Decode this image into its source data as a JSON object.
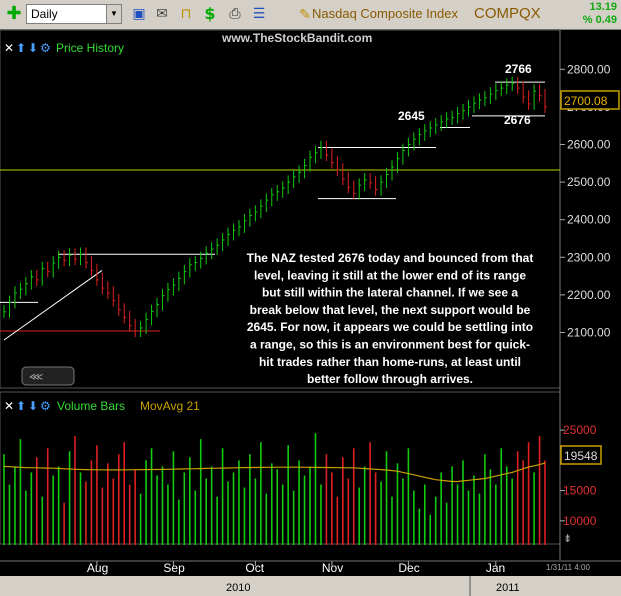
{
  "toolbar": {
    "period": "Daily",
    "symbol_name": "Nasdaq Composite Index",
    "symbol": "COMPQX",
    "change_abs": "13.19",
    "change_pct": "% 0.49"
  },
  "watermark": "www.TheStockBandit.com",
  "price_panel": {
    "title": "Price History",
    "last_price": "2700.08",
    "levels": [
      {
        "label": "2766",
        "value": 2766
      },
      {
        "label": "2645",
        "value": 2645
      },
      {
        "label": "2676",
        "value": 2676
      }
    ],
    "annotation": [
      "The NAZ tested 2676 today and bounced from that",
      "level, leaving it still at the lower end of its range",
      "but still within the lateral channel.  If we see a",
      "break below that level, the next support would be",
      "2645.  For now, it appears we could be settling into",
      "a range, so this is an environment best for quick-",
      "hit trades rather than home-runs, at least until",
      "better follow through arrives."
    ]
  },
  "volume_panel": {
    "title": "Volume Bars",
    "ma_title": "MovAvg 21",
    "last_ma": "19548"
  },
  "x_axis": {
    "months": [
      "Aug",
      "Sep",
      "Oct",
      "Nov",
      "Dec",
      "Jan"
    ],
    "years": [
      "2010",
      "2011"
    ],
    "end_date": "1/31/11 4:00"
  },
  "colors": {
    "up": "#11cc11",
    "down": "#e02020",
    "ma": "#c8a000",
    "text_green": "#33dd33",
    "price_tick": "#dddddd",
    "vol_tick": "#e03030"
  },
  "chart_data": [
    {
      "type": "ohlc",
      "title": "Price History",
      "y_ticks": [
        2100,
        2200,
        2300,
        2400,
        2500,
        2600,
        2700,
        2800
      ],
      "ylim": [
        2055,
        2850
      ],
      "last": 2700.08,
      "closes": [
        2155,
        2180,
        2205,
        2215,
        2230,
        2248,
        2240,
        2270,
        2262,
        2285,
        2300,
        2292,
        2306,
        2295,
        2308,
        2286,
        2265,
        2240,
        2218,
        2205,
        2185,
        2160,
        2140,
        2118,
        2104,
        2112,
        2135,
        2156,
        2174,
        2198,
        2214,
        2226,
        2244,
        2262,
        2280,
        2286,
        2297,
        2311,
        2322,
        2332,
        2346,
        2361,
        2372,
        2381,
        2397,
        2411,
        2420,
        2436,
        2452,
        2466,
        2474,
        2484,
        2500,
        2514,
        2526,
        2544,
        2566,
        2578,
        2592,
        2572,
        2552,
        2532,
        2508,
        2486,
        2470,
        2492,
        2506,
        2498,
        2480,
        2500,
        2520,
        2540,
        2562,
        2584,
        2600,
        2614,
        2626,
        2636,
        2644,
        2652,
        2660,
        2668,
        2672,
        2682,
        2690,
        2700,
        2710,
        2718,
        2724,
        2734,
        2744,
        2750,
        2758,
        2762,
        2750,
        2726,
        2708,
        2742,
        2730,
        2700
      ]
    },
    {
      "type": "bar",
      "title": "Volume Bars",
      "y_ticks": [
        10000,
        15000,
        20000,
        25000
      ],
      "ylim": [
        6000,
        27000
      ],
      "ma_last": 19548,
      "volumes": [
        21000,
        16000,
        19000,
        23500,
        15000,
        18000,
        20500,
        14000,
        22000,
        17500,
        19000,
        13000,
        21500,
        24000,
        18000,
        16500,
        20000,
        22500,
        15500,
        19500,
        17000,
        21000,
        23000,
        16000,
        18500,
        14500,
        20000,
        22000,
        17500,
        19000,
        16000,
        21500,
        13500,
        18000,
        20500,
        15000,
        23500,
        17000,
        19000,
        14000,
        22000,
        16500,
        18000,
        20000,
        15500,
        21000,
        17000,
        23000,
        14500,
        19500,
        18500,
        16000,
        22500,
        15000,
        20000,
        17500,
        19000,
        24500,
        16000,
        21000,
        18000,
        14000,
        20500,
        17000,
        22000,
        15500,
        19000,
        23000,
        18000,
        16500,
        21500,
        14000,
        19500,
        17000,
        22000,
        15000,
        12000,
        16000,
        11000,
        14000,
        18000,
        13000,
        19000,
        16000,
        20000,
        15000,
        17500,
        14500,
        21000,
        18500,
        16000,
        22000,
        19000,
        17000,
        21500,
        20000,
        23000,
        18000,
        24000,
        20000
      ],
      "ma": [
        19000,
        18950,
        18900,
        18850,
        18800,
        18780,
        18760,
        18740,
        18720,
        18700,
        18650,
        18600,
        18560,
        18520,
        18480,
        18460,
        18450,
        18440,
        18430,
        18420,
        18420,
        18420,
        18430,
        18440,
        18450,
        18460,
        18470,
        18480,
        18490,
        18500,
        18520,
        18540,
        18560,
        18580,
        18600,
        18620,
        18640,
        18660,
        18680,
        18700,
        18720,
        18740,
        18760,
        18780,
        18800,
        18810,
        18820,
        18830,
        18840,
        18850,
        18860,
        18860,
        18860,
        18860,
        18860,
        18850,
        18840,
        18830,
        18820,
        18810,
        18800,
        18790,
        18780,
        18770,
        18760,
        18700,
        18640,
        18580,
        18520,
        18460,
        18400,
        18300,
        18200,
        18000,
        17800,
        17600,
        17400,
        17200,
        17000,
        16800,
        16700,
        16600,
        16500,
        16500,
        16600,
        16700,
        16800,
        16900,
        17000,
        17200,
        17400,
        17600,
        17800,
        18000,
        18300,
        18600,
        18900,
        19100,
        19300,
        19548
      ]
    }
  ]
}
